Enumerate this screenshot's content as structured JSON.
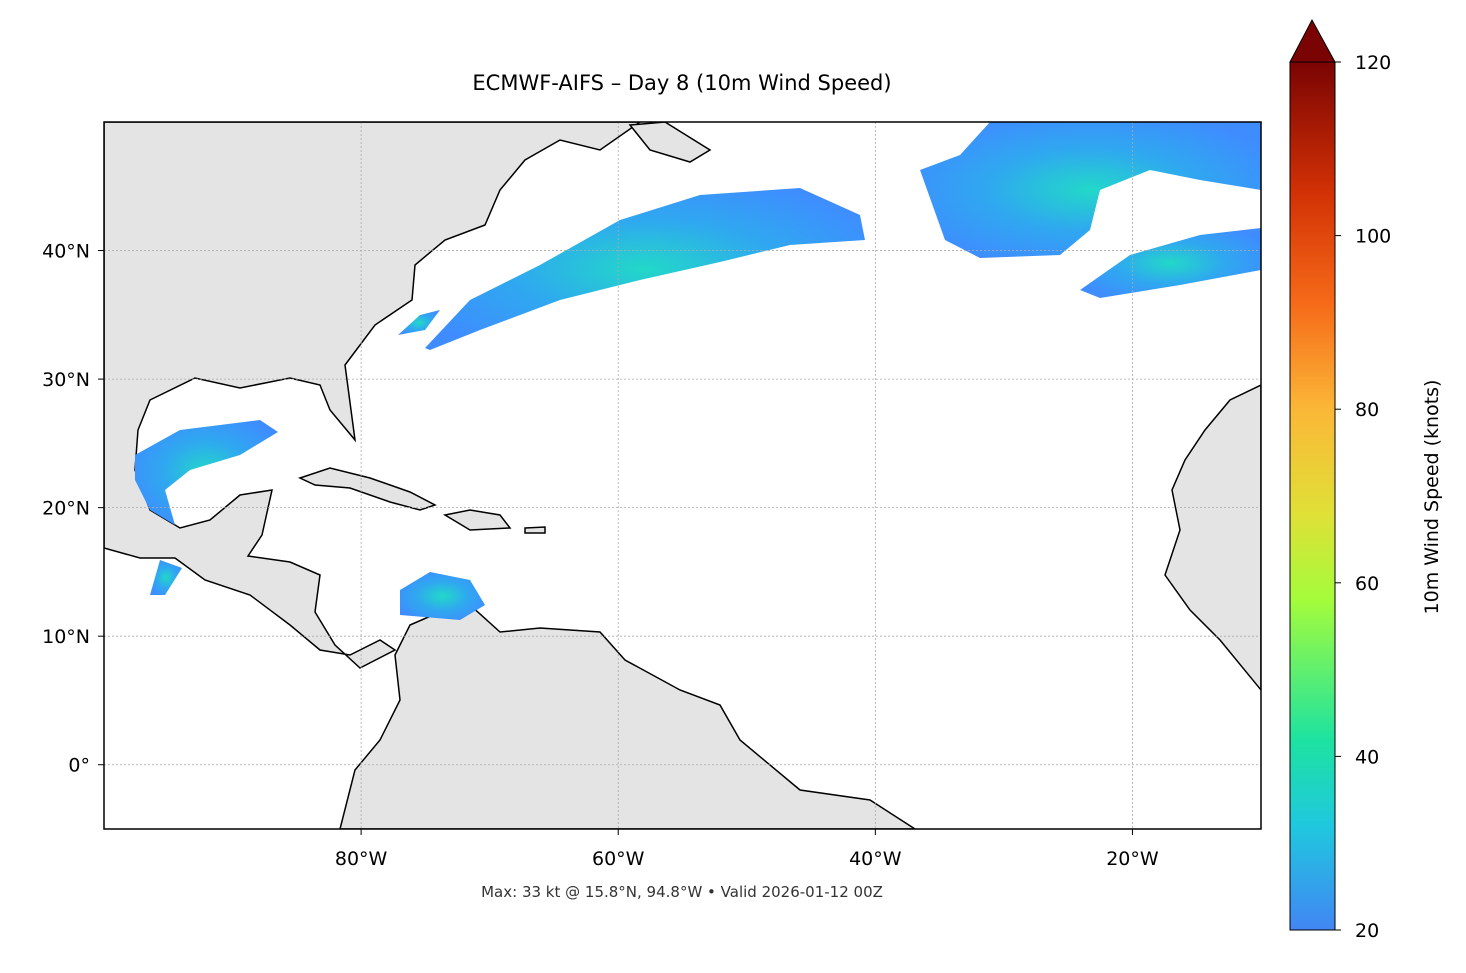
{
  "chart_data": {
    "type": "map",
    "title": "ECMWF-AIFS – Day 8 (10m Wind Speed)",
    "footer": "Max: 33 kt @ 15.8°N, 94.8°W • Valid 2026-01-12 00Z",
    "xlim": [
      -100,
      -10
    ],
    "ylim": [
      -5,
      50
    ],
    "xticks": [
      {
        "value": -80,
        "label": "80°W"
      },
      {
        "value": -60,
        "label": "60°W"
      },
      {
        "value": -40,
        "label": "40°W"
      },
      {
        "value": -20,
        "label": "20°W"
      }
    ],
    "yticks": [
      {
        "value": 0,
        "label": "0°"
      },
      {
        "value": 10,
        "label": "10°N"
      },
      {
        "value": 20,
        "label": "20°N"
      },
      {
        "value": 30,
        "label": "30°N"
      },
      {
        "value": 40,
        "label": "40°N"
      }
    ],
    "grid": true,
    "colorbar": {
      "label": "10m Wind Speed (knots)",
      "lim": [
        20,
        120
      ],
      "ticks": [
        20,
        40,
        60,
        80,
        100,
        120
      ]
    }
  }
}
